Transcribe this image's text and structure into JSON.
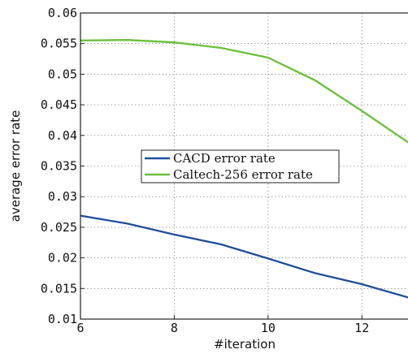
{
  "chart_data": {
    "type": "line",
    "xlabel": "#iteration",
    "ylabel": "average error rate",
    "xlim": [
      6,
      13
    ],
    "ylim": [
      0.01,
      0.06
    ],
    "xticks": [
      6,
      8,
      10,
      12
    ],
    "xtick_labels": [
      "6",
      "8",
      "10",
      "12"
    ],
    "yticks": [
      0.01,
      0.015,
      0.02,
      0.025,
      0.03,
      0.035,
      0.04,
      0.045,
      0.05,
      0.055,
      0.06
    ],
    "ytick_labels": [
      "0.01",
      "0.015",
      "0.02",
      "0.025",
      "0.03",
      "0.035",
      "0.04",
      "0.045",
      "0.05",
      "0.055",
      "0.06"
    ],
    "grid": true,
    "legend_position": "center",
    "series": [
      {
        "name": "CACD error rate",
        "color": "#1f4e9c",
        "x": [
          6,
          7,
          8,
          9,
          10,
          11,
          12,
          13
        ],
        "values": [
          0.0269,
          0.0256,
          0.0238,
          0.0222,
          0.0199,
          0.0175,
          0.0157,
          0.0135
        ]
      },
      {
        "name": "Caltech-256 error rate",
        "color": "#6abf3b",
        "x": [
          6,
          7,
          8,
          9,
          10,
          11,
          12,
          13
        ],
        "values": [
          0.0555,
          0.0556,
          0.0552,
          0.0543,
          0.0527,
          0.049,
          0.044,
          0.0388
        ]
      }
    ]
  }
}
